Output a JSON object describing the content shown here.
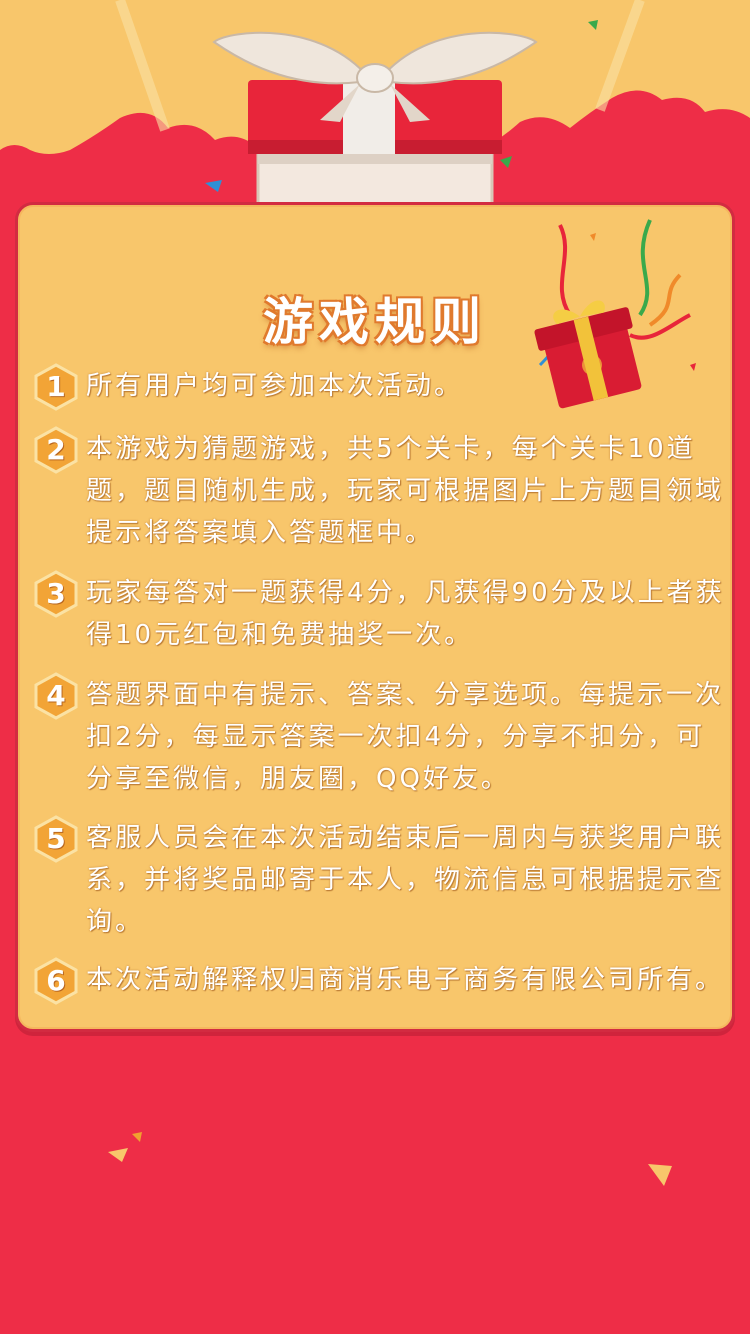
{
  "title": "游戏规则",
  "rules": [
    {
      "num": "1",
      "text": "所有用户均可参加本次活动。"
    },
    {
      "num": "2",
      "text": "本游戏为猜题游戏，共5个关卡，每个关卡10道题，题目随机生成，玩家可根据图片上方题目领域提示将答案填入答题框中。"
    },
    {
      "num": "3",
      "text": "玩家每答对一题获得4分，凡获得90分及以上者获得10元红包和免费抽奖一次。"
    },
    {
      "num": "4",
      "text": "答题界面中有提示、答案、分享选项。每提示一次扣2分，每显示答案一次扣4分，分享不扣分，可分享至微信，朋友圈，QQ好友。"
    },
    {
      "num": "5",
      "text": "客服人员会在本次活动结束后一周内与获奖用户联系，并将奖品邮寄于本人，物流信息可根据提示查询。"
    },
    {
      "num": "6",
      "text": "本次活动解释权归商消乐电子商务有限公司所有。"
    }
  ],
  "colors": {
    "background": "#ee2d47",
    "top_band": "#f8c66b",
    "panel": "#f8c66b",
    "badge": "#f2a436",
    "text": "#ffffff"
  },
  "icons": [
    "gift-box-icon",
    "small-gift-icon",
    "confetti-icon"
  ]
}
